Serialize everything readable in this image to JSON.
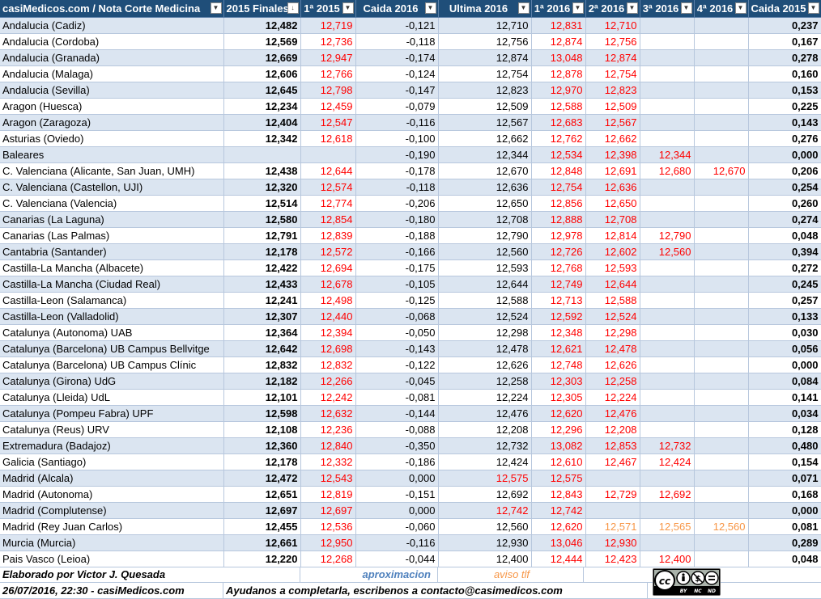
{
  "header": {
    "columns": [
      "casiMedicos.com / Nota Corte Medicina",
      "2015 Finales",
      "1ª 2015",
      "Caida 2016",
      "Ultima 2016",
      "1ª 2016",
      "2ª 2016",
      "3ª 2016",
      "4ª 2016",
      "Caida 2015"
    ]
  },
  "rows": [
    {
      "name": "Andalucia (Cadiz)",
      "f2015": "12,482",
      "p2015": "12,719",
      "caida2016": "-0,121",
      "ultima2016": "12,710",
      "p2016": "12,831",
      "s2016": "12,710",
      "t2016": "",
      "c2016": "",
      "caida2015": "0,237"
    },
    {
      "name": "Andalucia (Cordoba)",
      "f2015": "12,569",
      "p2015": "12,736",
      "caida2016": "-0,118",
      "ultima2016": "12,756",
      "p2016": "12,874",
      "s2016": "12,756",
      "t2016": "",
      "c2016": "",
      "caida2015": "0,167"
    },
    {
      "name": "Andalucia (Granada)",
      "f2015": "12,669",
      "p2015": "12,947",
      "caida2016": "-0,174",
      "ultima2016": "12,874",
      "p2016": "13,048",
      "s2016": "12,874",
      "t2016": "",
      "c2016": "",
      "caida2015": "0,278"
    },
    {
      "name": "Andalucia (Malaga)",
      "f2015": "12,606",
      "p2015": "12,766",
      "caida2016": "-0,124",
      "ultima2016": "12,754",
      "p2016": "12,878",
      "s2016": "12,754",
      "t2016": "",
      "c2016": "",
      "caida2015": "0,160"
    },
    {
      "name": "Andalucia (Sevilla)",
      "f2015": "12,645",
      "p2015": "12,798",
      "caida2016": "-0,147",
      "ultima2016": "12,823",
      "p2016": "12,970",
      "s2016": "12,823",
      "t2016": "",
      "c2016": "",
      "caida2015": "0,153"
    },
    {
      "name": "Aragon (Huesca)",
      "f2015": "12,234",
      "p2015": "12,459",
      "caida2016": "-0,079",
      "ultima2016": "12,509",
      "p2016": "12,588",
      "s2016": "12,509",
      "t2016": "",
      "c2016": "",
      "caida2015": "0,225"
    },
    {
      "name": "Aragon (Zaragoza)",
      "f2015": "12,404",
      "p2015": "12,547",
      "caida2016": "-0,116",
      "ultima2016": "12,567",
      "p2016": "12,683",
      "s2016": "12,567",
      "t2016": "",
      "c2016": "",
      "caida2015": "0,143"
    },
    {
      "name": "Asturias (Oviedo)",
      "f2015": "12,342",
      "p2015": "12,618",
      "caida2016": "-0,100",
      "ultima2016": "12,662",
      "p2016": "12,762",
      "s2016": "12,662",
      "t2016": "",
      "c2016": "",
      "caida2015": "0,276"
    },
    {
      "name": "Baleares",
      "f2015": "",
      "p2015": "",
      "caida2016": "-0,190",
      "ultima2016": "12,344",
      "p2016": "12,534",
      "s2016": "12,398",
      "t2016": "12,344",
      "c2016": "",
      "caida2015": "0,000"
    },
    {
      "name": "C. Valenciana (Alicante, San Juan, UMH)",
      "f2015": "12,438",
      "p2015": "12,644",
      "caida2016": "-0,178",
      "ultima2016": "12,670",
      "p2016": "12,848",
      "s2016": "12,691",
      "t2016": "12,680",
      "c2016": "12,670",
      "caida2015": "0,206"
    },
    {
      "name": "C. Valenciana (Castellon, UJI)",
      "f2015": "12,320",
      "p2015": "12,574",
      "caida2016": "-0,118",
      "ultima2016": "12,636",
      "p2016": "12,754",
      "s2016": "12,636",
      "t2016": "",
      "c2016": "",
      "caida2015": "0,254"
    },
    {
      "name": "C. Valenciana (Valencia)",
      "f2015": "12,514",
      "p2015": "12,774",
      "caida2016": "-0,206",
      "ultima2016": "12,650",
      "p2016": "12,856",
      "s2016": "12,650",
      "t2016": "",
      "c2016": "",
      "caida2015": "0,260"
    },
    {
      "name": "Canarias (La Laguna)",
      "f2015": "12,580",
      "p2015": "12,854",
      "caida2016": "-0,180",
      "ultima2016": "12,708",
      "p2016": "12,888",
      "s2016": "12,708",
      "t2016": "",
      "c2016": "",
      "caida2015": "0,274"
    },
    {
      "name": "Canarias (Las Palmas)",
      "f2015": "12,791",
      "p2015": "12,839",
      "caida2016": "-0,188",
      "ultima2016": "12,790",
      "p2016": "12,978",
      "s2016": "12,814",
      "t2016": "12,790",
      "c2016": "",
      "caida2015": "0,048"
    },
    {
      "name": "Cantabria (Santander)",
      "f2015": "12,178",
      "p2015": "12,572",
      "caida2016": "-0,166",
      "ultima2016": "12,560",
      "p2016": "12,726",
      "s2016": "12,602",
      "t2016": "12,560",
      "c2016": "",
      "caida2015": "0,394"
    },
    {
      "name": "Castilla-La Mancha (Albacete)",
      "f2015": "12,422",
      "p2015": "12,694",
      "caida2016": "-0,175",
      "ultima2016": "12,593",
      "p2016": "12,768",
      "s2016": "12,593",
      "t2016": "",
      "c2016": "",
      "caida2015": "0,272"
    },
    {
      "name": "Castilla-La Mancha (Ciudad Real)",
      "f2015": "12,433",
      "p2015": "12,678",
      "caida2016": "-0,105",
      "ultima2016": "12,644",
      "p2016": "12,749",
      "s2016": "12,644",
      "t2016": "",
      "c2016": "",
      "caida2015": "0,245"
    },
    {
      "name": "Castilla-Leon (Salamanca)",
      "f2015": "12,241",
      "p2015": "12,498",
      "caida2016": "-0,125",
      "ultima2016": "12,588",
      "p2016": "12,713",
      "s2016": "12,588",
      "t2016": "",
      "c2016": "",
      "caida2015": "0,257"
    },
    {
      "name": "Castilla-Leon (Valladolid)",
      "f2015": "12,307",
      "p2015": "12,440",
      "caida2016": "-0,068",
      "ultima2016": "12,524",
      "p2016": "12,592",
      "s2016": "12,524",
      "t2016": "",
      "c2016": "",
      "caida2015": "0,133"
    },
    {
      "name": "Catalunya (Autonoma) UAB",
      "f2015": "12,364",
      "p2015": "12,394",
      "caida2016": "-0,050",
      "ultima2016": "12,298",
      "p2016": "12,348",
      "s2016": "12,298",
      "t2016": "",
      "c2016": "",
      "caida2015": "0,030"
    },
    {
      "name": "Catalunya (Barcelona) UB Campus Bellvitge",
      "f2015": "12,642",
      "p2015": "12,698",
      "caida2016": "-0,143",
      "ultima2016": "12,478",
      "p2016": "12,621",
      "s2016": "12,478",
      "t2016": "",
      "c2016": "",
      "caida2015": "0,056"
    },
    {
      "name": "Catalunya (Barcelona) UB Campus Clínic",
      "f2015": "12,832",
      "p2015": "12,832",
      "caida2016": "-0,122",
      "ultima2016": "12,626",
      "p2016": "12,748",
      "s2016": "12,626",
      "t2016": "",
      "c2016": "",
      "caida2015": "0,000"
    },
    {
      "name": "Catalunya (Girona) UdG",
      "f2015": "12,182",
      "p2015": "12,266",
      "caida2016": "-0,045",
      "ultima2016": "12,258",
      "p2016": "12,303",
      "s2016": "12,258",
      "t2016": "",
      "c2016": "",
      "caida2015": "0,084"
    },
    {
      "name": "Catalunya (Lleida) UdL",
      "f2015": "12,101",
      "p2015": "12,242",
      "caida2016": "-0,081",
      "ultima2016": "12,224",
      "p2016": "12,305",
      "s2016": "12,224",
      "t2016": "",
      "c2016": "",
      "caida2015": "0,141"
    },
    {
      "name": "Catalunya (Pompeu Fabra) UPF",
      "f2015": "12,598",
      "p2015": "12,632",
      "caida2016": "-0,144",
      "ultima2016": "12,476",
      "p2016": "12,620",
      "s2016": "12,476",
      "t2016": "",
      "c2016": "",
      "caida2015": "0,034"
    },
    {
      "name": "Catalunya (Reus) URV",
      "f2015": "12,108",
      "p2015": "12,236",
      "caida2016": "-0,088",
      "ultima2016": "12,208",
      "p2016": "12,296",
      "s2016": "12,208",
      "t2016": "",
      "c2016": "",
      "caida2015": "0,128"
    },
    {
      "name": "Extremadura (Badajoz)",
      "f2015": "12,360",
      "p2015": "12,840",
      "caida2016": "-0,350",
      "ultima2016": "12,732",
      "p2016": "13,082",
      "s2016": "12,853",
      "t2016": "12,732",
      "c2016": "",
      "caida2015": "0,480"
    },
    {
      "name": "Galicia (Santiago)",
      "f2015": "12,178",
      "p2015": "12,332",
      "caida2016": "-0,186",
      "ultima2016": "12,424",
      "p2016": "12,610",
      "s2016": "12,467",
      "t2016": "12,424",
      "c2016": "",
      "caida2015": "0,154"
    },
    {
      "name": "Madrid (Alcala)",
      "f2015": "12,472",
      "p2015": "12,543",
      "caida2016": "0,000",
      "ultima2016": "12,575",
      "p2016": "12,575",
      "s2016": "",
      "t2016": "",
      "c2016": "",
      "caida2015": "0,071",
      "ultima_red": true
    },
    {
      "name": "Madrid (Autonoma)",
      "f2015": "12,651",
      "p2015": "12,819",
      "caida2016": "-0,151",
      "ultima2016": "12,692",
      "p2016": "12,843",
      "s2016": "12,729",
      "t2016": "12,692",
      "c2016": "",
      "caida2015": "0,168"
    },
    {
      "name": "Madrid (Complutense)",
      "f2015": "12,697",
      "p2015": "12,697",
      "caida2016": "0,000",
      "ultima2016": "12,742",
      "p2016": "12,742",
      "s2016": "",
      "t2016": "",
      "c2016": "",
      "caida2015": "0,000",
      "ultima_red": true
    },
    {
      "name": "Madrid (Rey Juan Carlos)",
      "f2015": "12,455",
      "p2015": "12,536",
      "caida2016": "-0,060",
      "ultima2016": "12,560",
      "p2016": "12,620",
      "s2016": "12,571",
      "t2016": "12,565",
      "c2016": "12,560",
      "caida2015": "0,081",
      "later_orange": true
    },
    {
      "name": "Murcia (Murcia)",
      "f2015": "12,661",
      "p2015": "12,950",
      "caida2016": "-0,116",
      "ultima2016": "12,930",
      "p2016": "13,046",
      "s2016": "12,930",
      "t2016": "",
      "c2016": "",
      "caida2015": "0,289"
    },
    {
      "name": "Pais Vasco (Leioa)",
      "f2015": "12,220",
      "p2015": "12,268",
      "caida2016": "-0,044",
      "ultima2016": "12,400",
      "p2016": "12,444",
      "s2016": "12,423",
      "t2016": "12,400",
      "c2016": "",
      "caida2015": "0,048"
    }
  ],
  "footer": {
    "author": "Elaborado por Victor J. Quesada",
    "legend_approx": "aproximacion",
    "legend_phone": "aviso tlf",
    "date": "26/07/2016, 22:30 - casiMedicos.com",
    "help": "Ayudanos a completarla, escribenos a contacto@casimedicos.com",
    "license": {
      "by": "BY",
      "nc": "NC",
      "nd": "ND"
    }
  },
  "colors": {
    "header_bg": "#1f4e79",
    "band": "#dbe5f1",
    "red": "#ff0000",
    "orange": "#f79646",
    "blue": "#4f81bd"
  }
}
